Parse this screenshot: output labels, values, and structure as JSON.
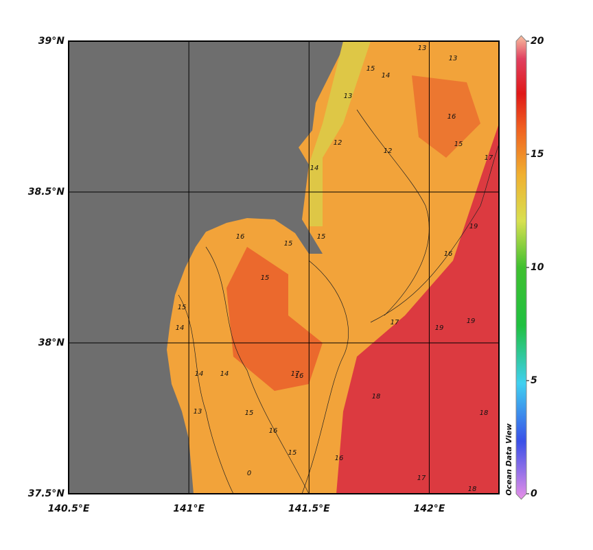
{
  "map": {
    "xlim": [
      140.5,
      142.29
    ],
    "ylim": [
      37.5,
      39
    ],
    "xticks": [
      {
        "value": 140.5,
        "label": "140.5°E"
      },
      {
        "value": 141,
        "label": "141°E"
      },
      {
        "value": 141.5,
        "label": "141.5°E"
      },
      {
        "value": 142,
        "label": "142°E"
      }
    ],
    "yticks": [
      {
        "value": 37.5,
        "label": "37.5°N"
      },
      {
        "value": 38,
        "label": "38°N"
      },
      {
        "value": 38.5,
        "label": "38.5°N"
      },
      {
        "value": 39,
        "label": "39°N"
      }
    ],
    "grid": true,
    "colors": {
      "land": "#6e6e6e",
      "sea": "#f2a33a",
      "warm": "#dc3a40",
      "hot": "#e85a2a",
      "cool": "#d8d04a"
    },
    "contour_labels": [
      13,
      13,
      15,
      14,
      13,
      12,
      12,
      16,
      15,
      14,
      17,
      16,
      15,
      15,
      15,
      15,
      14,
      14,
      16,
      17,
      19,
      19,
      18,
      18,
      16,
      17,
      19,
      15,
      16,
      15,
      14,
      16,
      13,
      0,
      18,
      17
    ],
    "colorbar": {
      "clim": [
        0,
        20
      ],
      "ticks": [
        0,
        5,
        10,
        15,
        20
      ],
      "label": "Ocean Data View",
      "stops": [
        {
          "value": 0,
          "color": "#e890e8"
        },
        {
          "value": 2.5,
          "color": "#3a50e8"
        },
        {
          "value": 5,
          "color": "#40d0f0"
        },
        {
          "value": 7.5,
          "color": "#20c040"
        },
        {
          "value": 10,
          "color": "#40c030"
        },
        {
          "value": 12,
          "color": "#d8e050"
        },
        {
          "value": 14,
          "color": "#f0b030"
        },
        {
          "value": 16,
          "color": "#f06020"
        },
        {
          "value": 17.5,
          "color": "#e01818"
        },
        {
          "value": 19,
          "color": "#e04060"
        },
        {
          "value": 20,
          "color": "#f8c0a0"
        }
      ]
    }
  }
}
